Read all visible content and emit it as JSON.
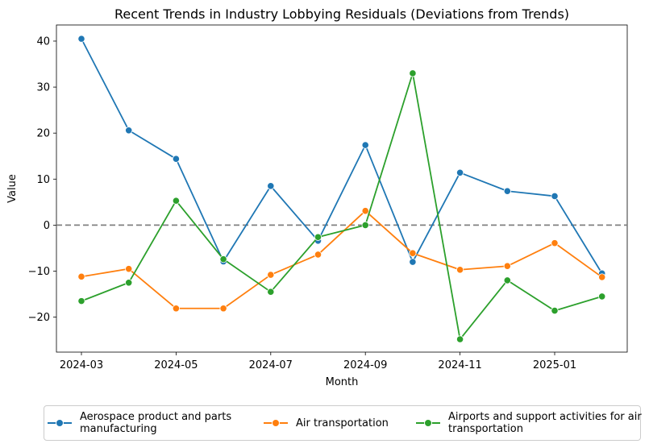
{
  "chart_data": {
    "type": "line",
    "title": "Recent Trends in Industry Lobbying Residuals (Deviations from Trends)",
    "xlabel": "Month",
    "ylabel": "Value",
    "x": [
      "2024-03",
      "2024-04",
      "2024-05",
      "2024-06",
      "2024-07",
      "2024-08",
      "2024-09",
      "2024-10",
      "2024-11",
      "2024-12",
      "2025-01",
      "2025-02"
    ],
    "x_tick_labels": [
      "2024-03",
      "2024-05",
      "2024-07",
      "2024-09",
      "2024-11",
      "2025-01"
    ],
    "y_ticks": [
      40,
      30,
      20,
      10,
      0,
      -10,
      -20
    ],
    "y_tick_labels": [
      "40",
      "30",
      "20",
      "10",
      "0",
      "−10",
      "−20"
    ],
    "ylim": [
      -27.6,
      43.5
    ],
    "reference_line": 0,
    "grid": false,
    "legend_position": "bottom",
    "series": [
      {
        "name": "Aerospace product and parts manufacturing",
        "color": "#1f77b4",
        "values": [
          40.5,
          20.6,
          14.4,
          -7.9,
          8.5,
          -3.4,
          17.4,
          -8.0,
          11.4,
          7.4,
          6.3,
          -10.5
        ]
      },
      {
        "name": "Air transportation",
        "color": "#ff7f0e",
        "values": [
          -11.2,
          -9.5,
          -18.1,
          -18.1,
          -10.8,
          -6.4,
          3.1,
          -6.1,
          -9.7,
          -8.9,
          -3.9,
          -11.3
        ]
      },
      {
        "name": "Airports and support activities for air transportation",
        "color": "#2ca02c",
        "values": [
          -16.5,
          -12.5,
          5.3,
          -7.4,
          -14.5,
          -2.6,
          0.0,
          33.0,
          -24.8,
          -12.0,
          -18.6,
          -15.5
        ]
      }
    ]
  }
}
